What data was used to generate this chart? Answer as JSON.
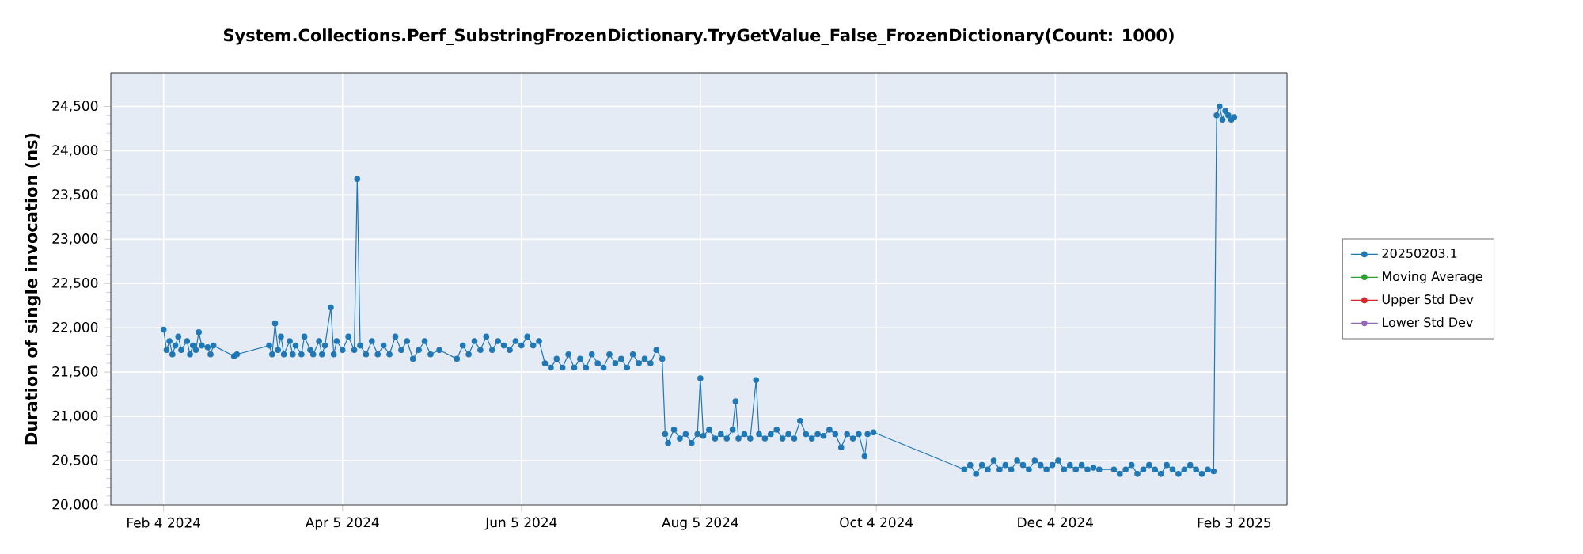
{
  "chart_data": {
    "type": "line",
    "title": "System.Collections.Perf_SubstringFrozenDictionary.TryGetValue_False_FrozenDictionary(Count: 1000)",
    "ylabel": "Duration of single invocation (ns)",
    "xlim": [
      "2024-01-17",
      "2025-02-21"
    ],
    "xticks": [
      {
        "value": "2024-02-04",
        "label": "Feb 4 2024"
      },
      {
        "value": "2024-04-05",
        "label": "Apr 5 2024"
      },
      {
        "value": "2024-06-05",
        "label": "Jun 5 2024"
      },
      {
        "value": "2024-08-05",
        "label": "Aug 5 2024"
      },
      {
        "value": "2024-10-04",
        "label": "Oct 4 2024"
      },
      {
        "value": "2024-12-04",
        "label": "Dec 4 2024"
      },
      {
        "value": "2025-02-03",
        "label": "Feb 3 2025"
      }
    ],
    "ylim": [
      20000,
      24880
    ],
    "yticks": [
      {
        "value": 20000,
        "label": "20,000"
      },
      {
        "value": 20500,
        "label": "20,500"
      },
      {
        "value": 21000,
        "label": "21,000"
      },
      {
        "value": 21500,
        "label": "21,500"
      },
      {
        "value": 22000,
        "label": "22,000"
      },
      {
        "value": 22500,
        "label": "22,500"
      },
      {
        "value": 23000,
        "label": "23,000"
      },
      {
        "value": 23500,
        "label": "23,500"
      },
      {
        "value": 24000,
        "label": "24,000"
      },
      {
        "value": 24500,
        "label": "24,500"
      }
    ],
    "grid": true,
    "legend": "right",
    "marker": "circle",
    "x": [
      "2024-02-04",
      "2024-02-05",
      "2024-02-06",
      "2024-02-07",
      "2024-02-08",
      "2024-02-09",
      "2024-02-10",
      "2024-02-12",
      "2024-02-13",
      "2024-02-14",
      "2024-02-15",
      "2024-02-16",
      "2024-02-17",
      "2024-02-19",
      "2024-02-20",
      "2024-02-21",
      "2024-02-28",
      "2024-02-29",
      "2024-03-11",
      "2024-03-12",
      "2024-03-13",
      "2024-03-14",
      "2024-03-15",
      "2024-03-16",
      "2024-03-18",
      "2024-03-19",
      "2024-03-20",
      "2024-03-22",
      "2024-03-23",
      "2024-03-25",
      "2024-03-26",
      "2024-03-28",
      "2024-03-29",
      "2024-03-30",
      "2024-04-01",
      "2024-04-02",
      "2024-04-03",
      "2024-04-05",
      "2024-04-07",
      "2024-04-09",
      "2024-04-10",
      "2024-04-11",
      "2024-04-13",
      "2024-04-15",
      "2024-04-17",
      "2024-04-19",
      "2024-04-21",
      "2024-04-23",
      "2024-04-25",
      "2024-04-27",
      "2024-04-29",
      "2024-05-01",
      "2024-05-03",
      "2024-05-05",
      "2024-05-08",
      "2024-05-14",
      "2024-05-16",
      "2024-05-18",
      "2024-05-20",
      "2024-05-22",
      "2024-05-24",
      "2024-05-26",
      "2024-05-28",
      "2024-05-30",
      "2024-06-01",
      "2024-06-03",
      "2024-06-05",
      "2024-06-07",
      "2024-06-09",
      "2024-06-11",
      "2024-06-13",
      "2024-06-15",
      "2024-06-17",
      "2024-06-19",
      "2024-06-21",
      "2024-06-23",
      "2024-06-25",
      "2024-06-27",
      "2024-06-29",
      "2024-07-01",
      "2024-07-03",
      "2024-07-05",
      "2024-07-07",
      "2024-07-09",
      "2024-07-11",
      "2024-07-13",
      "2024-07-15",
      "2024-07-17",
      "2024-07-19",
      "2024-07-21",
      "2024-07-23",
      "2024-07-24",
      "2024-07-25",
      "2024-07-27",
      "2024-07-29",
      "2024-07-31",
      "2024-08-02",
      "2024-08-04",
      "2024-08-05",
      "2024-08-06",
      "2024-08-08",
      "2024-08-10",
      "2024-08-12",
      "2024-08-14",
      "2024-08-16",
      "2024-08-17",
      "2024-08-18",
      "2024-08-20",
      "2024-08-22",
      "2024-08-24",
      "2024-08-25",
      "2024-08-27",
      "2024-08-29",
      "2024-08-31",
      "2024-09-02",
      "2024-09-04",
      "2024-09-06",
      "2024-09-08",
      "2024-09-10",
      "2024-09-12",
      "2024-09-14",
      "2024-09-16",
      "2024-09-18",
      "2024-09-20",
      "2024-09-22",
      "2024-09-24",
      "2024-09-26",
      "2024-09-28",
      "2024-09-30",
      "2024-10-01",
      "2024-10-03",
      "2024-11-03",
      "2024-11-05",
      "2024-11-07",
      "2024-11-09",
      "2024-11-11",
      "2024-11-13",
      "2024-11-15",
      "2024-11-17",
      "2024-11-19",
      "2024-11-21",
      "2024-11-23",
      "2024-11-25",
      "2024-11-27",
      "2024-11-29",
      "2024-12-01",
      "2024-12-03",
      "2024-12-05",
      "2024-12-07",
      "2024-12-09",
      "2024-12-11",
      "2024-12-13",
      "2024-12-15",
      "2024-12-17",
      "2024-12-19",
      "2024-12-24",
      "2024-12-26",
      "2024-12-28",
      "2024-12-30",
      "2025-01-01",
      "2025-01-03",
      "2025-01-05",
      "2025-01-07",
      "2025-01-09",
      "2025-01-11",
      "2025-01-13",
      "2025-01-15",
      "2025-01-17",
      "2025-01-19",
      "2025-01-21",
      "2025-01-23",
      "2025-01-25",
      "2025-01-27",
      "2025-01-28",
      "2025-01-29",
      "2025-01-30",
      "2025-01-31",
      "2025-02-01",
      "2025-02-02",
      "2025-02-03"
    ],
    "series": [
      {
        "name": "20250203.1",
        "color": "#1f77b4",
        "values": [
          21980,
          21750,
          21850,
          21700,
          21800,
          21900,
          21750,
          21850,
          21700,
          21800,
          21750,
          21950,
          21800,
          21780,
          21700,
          21800,
          21680,
          21700,
          21800,
          21700,
          22050,
          21750,
          21900,
          21700,
          21850,
          21700,
          21800,
          21700,
          21900,
          21750,
          21700,
          21850,
          21700,
          21800,
          22230,
          21700,
          21850,
          21750,
          21900,
          21750,
          23680,
          21800,
          21700,
          21850,
          21700,
          21800,
          21700,
          21900,
          21750,
          21850,
          21650,
          21750,
          21850,
          21700,
          21750,
          21650,
          21800,
          21700,
          21850,
          21750,
          21900,
          21750,
          21850,
          21800,
          21750,
          21850,
          21800,
          21900,
          21800,
          21850,
          21600,
          21550,
          21650,
          21550,
          21700,
          21550,
          21650,
          21550,
          21700,
          21600,
          21550,
          21700,
          21600,
          21650,
          21550,
          21700,
          21600,
          21650,
          21600,
          21750,
          21650,
          20800,
          20700,
          20850,
          20750,
          20800,
          20700,
          20800,
          21430,
          20780,
          20850,
          20750,
          20800,
          20750,
          20850,
          21170,
          20750,
          20800,
          20750,
          21410,
          20800,
          20750,
          20800,
          20850,
          20750,
          20800,
          20750,
          20950,
          20800,
          20750,
          20800,
          20780,
          20850,
          20800,
          20650,
          20800,
          20750,
          20800,
          20550,
          20800,
          20820,
          20400,
          20450,
          20350,
          20450,
          20400,
          20500,
          20400,
          20450,
          20400,
          20500,
          20450,
          20400,
          20500,
          20450,
          20400,
          20450,
          20500,
          20400,
          20450,
          20400,
          20450,
          20400,
          20420,
          20400,
          20400,
          20350,
          20400,
          20450,
          20350,
          20400,
          20450,
          20400,
          20350,
          20450,
          20400,
          20350,
          20400,
          20450,
          20400,
          20350,
          20400,
          20380,
          24400,
          24500,
          24350,
          24450,
          24400,
          24350,
          24380
        ]
      },
      {
        "name": "Moving Average",
        "color": "#2ca02c",
        "values": [
          null,
          null,
          null,
          null,
          null,
          null,
          null,
          null,
          null,
          null,
          null,
          null,
          null,
          null,
          null,
          null,
          null,
          null,
          null,
          null,
          null,
          null,
          null,
          null,
          null,
          null,
          null,
          null,
          null,
          null,
          null,
          null,
          null,
          null,
          null,
          null,
          null,
          null,
          null,
          null,
          null,
          null,
          null,
          null,
          null,
          null,
          null,
          null,
          null,
          null,
          null,
          null,
          null,
          null,
          null,
          null,
          null,
          null,
          null,
          null,
          null,
          null,
          null,
          null,
          null,
          null,
          null,
          null,
          null,
          null,
          null,
          null,
          null,
          null,
          null,
          null,
          null,
          null,
          null,
          null,
          null,
          null,
          null,
          null,
          null,
          null,
          null,
          null,
          null,
          null,
          null,
          null,
          null,
          null,
          null,
          null,
          null,
          null,
          null,
          null,
          null,
          null,
          null,
          null,
          null,
          null,
          null,
          null,
          null,
          null,
          null,
          null,
          null,
          null,
          null,
          null,
          null,
          null,
          null,
          null,
          null,
          null,
          null,
          null,
          null,
          null,
          null,
          null,
          null,
          null,
          null,
          null,
          null,
          null,
          null,
          null,
          null,
          null,
          null,
          null,
          null,
          null,
          null,
          null,
          null,
          null,
          null,
          null,
          null,
          null,
          null,
          null,
          null,
          null,
          null,
          null,
          null,
          null,
          null,
          null,
          null,
          null,
          null,
          null,
          null,
          null,
          null,
          null,
          null,
          null,
          null,
          null,
          null,
          null,
          null,
          null,
          null,
          null,
          null,
          null
        ]
      },
      {
        "name": "Upper Std Dev",
        "color": "#d62728",
        "values": [
          null,
          null,
          null,
          null,
          null,
          null,
          null,
          null,
          null,
          null,
          null,
          null,
          null,
          null,
          null,
          null,
          null,
          null,
          null,
          null,
          null,
          null,
          null,
          null,
          null,
          null,
          null,
          null,
          null,
          null,
          null,
          null,
          null,
          null,
          null,
          null,
          null,
          null,
          null,
          null,
          null,
          null,
          null,
          null,
          null,
          null,
          null,
          null,
          null,
          null,
          null,
          null,
          null,
          null,
          null,
          null,
          null,
          null,
          null,
          null,
          null,
          null,
          null,
          null,
          null,
          null,
          null,
          null,
          null,
          null,
          null,
          null,
          null,
          null,
          null,
          null,
          null,
          null,
          null,
          null,
          null,
          null,
          null,
          null,
          null,
          null,
          null,
          null,
          null,
          null,
          null,
          null,
          null,
          null,
          null,
          null,
          null,
          null,
          null,
          null,
          null,
          null,
          null,
          null,
          null,
          null,
          null,
          null,
          null,
          null,
          null,
          null,
          null,
          null,
          null,
          null,
          null,
          null,
          null,
          null,
          null,
          null,
          null,
          null,
          null,
          null,
          null,
          null,
          null,
          null,
          null,
          null,
          null,
          null,
          null,
          null,
          null,
          null,
          null,
          null,
          null,
          null,
          null,
          null,
          null,
          null,
          null,
          null,
          null,
          null,
          null,
          null,
          null,
          null,
          null,
          null,
          null,
          null,
          null,
          null,
          null,
          null,
          null,
          null,
          null,
          null,
          null,
          null,
          null,
          null,
          null,
          null,
          null,
          null,
          null,
          null,
          null,
          null,
          null,
          null
        ]
      },
      {
        "name": "Lower Std Dev",
        "color": "#9467bd",
        "values": [
          null,
          null,
          null,
          null,
          null,
          null,
          null,
          null,
          null,
          null,
          null,
          null,
          null,
          null,
          null,
          null,
          null,
          null,
          null,
          null,
          null,
          null,
          null,
          null,
          null,
          null,
          null,
          null,
          null,
          null,
          null,
          null,
          null,
          null,
          null,
          null,
          null,
          null,
          null,
          null,
          null,
          null,
          null,
          null,
          null,
          null,
          null,
          null,
          null,
          null,
          null,
          null,
          null,
          null,
          null,
          null,
          null,
          null,
          null,
          null,
          null,
          null,
          null,
          null,
          null,
          null,
          null,
          null,
          null,
          null,
          null,
          null,
          null,
          null,
          null,
          null,
          null,
          null,
          null,
          null,
          null,
          null,
          null,
          null,
          null,
          null,
          null,
          null,
          null,
          null,
          null,
          null,
          null,
          null,
          null,
          null,
          null,
          null,
          null,
          null,
          null,
          null,
          null,
          null,
          null,
          null,
          null,
          null,
          null,
          null,
          null,
          null,
          null,
          null,
          null,
          null,
          null,
          null,
          null,
          null,
          null,
          null,
          null,
          null,
          null,
          null,
          null,
          null,
          null,
          null,
          null,
          null,
          null,
          null,
          null,
          null,
          null,
          null,
          null,
          null,
          null,
          null,
          null,
          null,
          null,
          null,
          null,
          null,
          null,
          null,
          null,
          null,
          null,
          null,
          null,
          null,
          null,
          null,
          null,
          null,
          null,
          null,
          null,
          null,
          null,
          null,
          null,
          null,
          null,
          null,
          null,
          null,
          null,
          null,
          null,
          null,
          null,
          null,
          null,
          null
        ]
      }
    ]
  }
}
